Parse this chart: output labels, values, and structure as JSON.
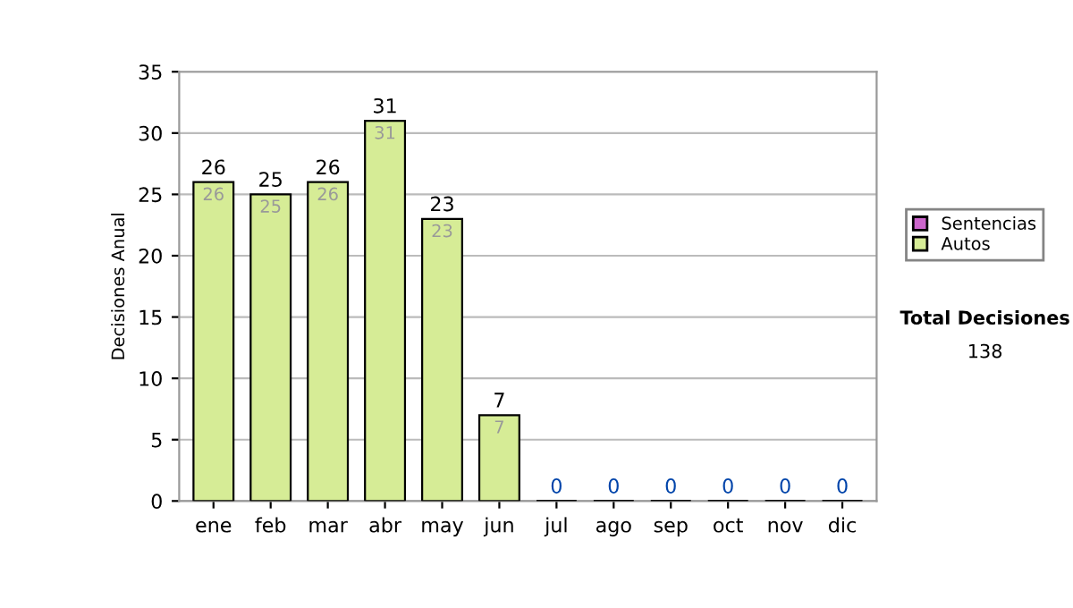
{
  "chart_data": {
    "type": "bar",
    "stacked": true,
    "ylabel": "Decisiones Anual",
    "categories": [
      "ene",
      "feb",
      "mar",
      "abr",
      "may",
      "jun",
      "jul",
      "ago",
      "sep",
      "oct",
      "nov",
      "dic"
    ],
    "series": [
      {
        "name": "Sentencias",
        "color": "#cc66cc",
        "values": [
          0,
          0,
          0,
          0,
          0,
          0,
          0,
          0,
          0,
          0,
          0,
          0
        ]
      },
      {
        "name": "Autos",
        "color": "#d6ec96",
        "values": [
          26,
          25,
          26,
          31,
          23,
          7,
          0,
          0,
          0,
          0,
          0,
          0
        ],
        "value_labels": [
          "26",
          "25",
          "26",
          "31",
          "23",
          "7",
          null,
          null,
          null,
          null,
          null,
          null
        ]
      }
    ],
    "totals": [
      "26",
      "25",
      "26",
      "31",
      "23",
      "7",
      "0",
      "0",
      "0",
      "0",
      "0",
      "0"
    ],
    "ylim": [
      0,
      35
    ],
    "yticks": [
      0,
      5,
      10,
      15,
      20,
      25,
      30,
      35
    ],
    "grid": "y",
    "legend": "right",
    "annotations": [
      "Total Decisiones",
      "138"
    ]
  }
}
